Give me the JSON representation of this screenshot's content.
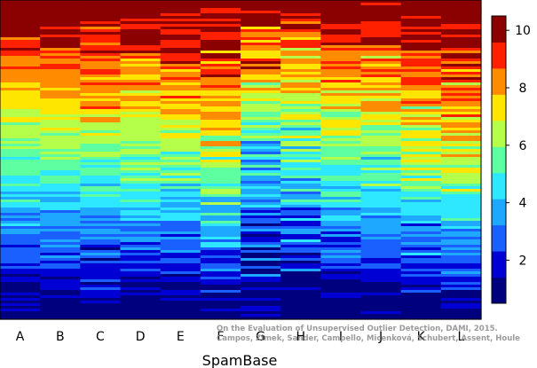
{
  "chart_data": {
    "type": "heatmap",
    "title": "",
    "xlabel": "SpamBase",
    "columns": [
      "A",
      "B",
      "C",
      "D",
      "E",
      "F",
      "G",
      "H",
      "I",
      "J",
      "K",
      "L"
    ],
    "value_range": [
      0.5,
      10.5
    ],
    "colorbar": {
      "ticks": [
        2,
        4,
        6,
        8,
        10
      ],
      "colors": [
        "#00007f",
        "#0000d4",
        "#1a5fff",
        "#1fa8ff",
        "#2ee8ff",
        "#5effa0",
        "#b5ff4a",
        "#ffe600",
        "#ff8c00",
        "#ff2000",
        "#8b0000"
      ],
      "placement": "right"
    },
    "rows": 120,
    "row_order": "sorted by mean rank, high (top) to low (bottom)",
    "column_offsets": [
      0,
      0,
      0.3,
      0.4,
      0.2,
      0.8,
      -1.2,
      -0.8,
      -0.2,
      0.2,
      0.6,
      1.0
    ],
    "column_noise": [
      1.4,
      1.4,
      1.8,
      1.9,
      2.0,
      2.4,
      2.7,
      2.6,
      2.2,
      2.6,
      2.4,
      2.2
    ]
  },
  "watermark": [
    "On the Evaluation of Unsupervised Outlier Detection, DAMI, 2015.",
    "Campos, Zimek, Sander, Campello, Micenková, Schubert, Assent, Houle"
  ]
}
